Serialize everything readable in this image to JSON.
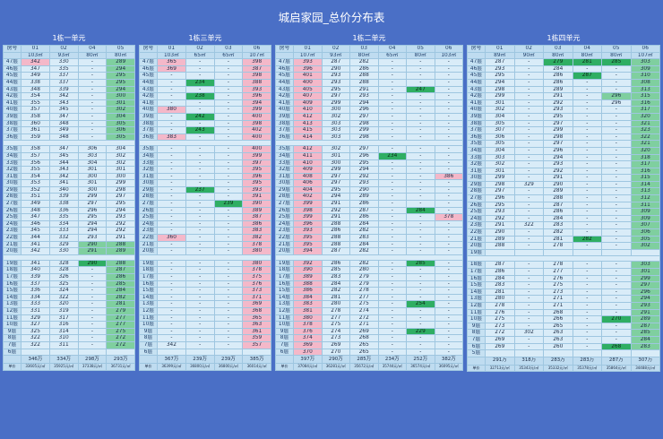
{
  "title": "城启家园_总价分布表",
  "floor_label": "房号",
  "price_label": "单价",
  "panels": [
    {
      "name": "1栋一单元",
      "units": [
        "01",
        "02",
        "04",
        "05"
      ],
      "areas": [
        "103㎡",
        "93㎡",
        "80㎡",
        "80㎡"
      ],
      "top": 47,
      "rows": [
        [
          "342p",
          "330",
          "-",
          "289g"
        ],
        [
          "347",
          "335",
          "-",
          "294g"
        ],
        [
          "349",
          "337",
          "-",
          "295g"
        ],
        [
          "338",
          "337",
          "-",
          "295g"
        ],
        [
          "348",
          "339",
          "-",
          "294g"
        ],
        [
          "354",
          "342",
          "-",
          "300g"
        ],
        [
          "355",
          "343",
          "-",
          "301g"
        ],
        [
          "357",
          "345",
          "-",
          "302g"
        ],
        [
          "358",
          "347",
          "-",
          "304g"
        ],
        [
          "360",
          "348",
          "-",
          "305g"
        ],
        [
          "361",
          "349",
          "-",
          "306g"
        ],
        [
          "359",
          "348",
          "-",
          "305g"
        ],
        null,
        [
          "358",
          "347",
          "306",
          "304"
        ],
        [
          "357",
          "345",
          "303",
          "302"
        ],
        [
          "356",
          "344",
          "304",
          "302"
        ],
        [
          "355",
          "343",
          "301",
          "301"
        ],
        [
          "354",
          "342",
          "300",
          "300"
        ],
        [
          "353",
          "341",
          "301",
          "299"
        ],
        [
          "352",
          "340",
          "300",
          "298"
        ],
        [
          "351",
          "339",
          "299",
          "297"
        ],
        [
          "349",
          "338",
          "297",
          "295"
        ],
        [
          "348",
          "336",
          "296",
          "294"
        ],
        [
          "347",
          "335",
          "295",
          "293"
        ],
        [
          "346",
          "334",
          "294",
          "292"
        ],
        [
          "345",
          "333",
          "294",
          "292"
        ],
        [
          "344",
          "332",
          "293",
          "291"
        ],
        [
          "341",
          "329",
          "290g",
          "288g"
        ],
        [
          "342",
          "330",
          "291g",
          "289g"
        ],
        null,
        [
          "341",
          "328",
          "290G",
          "288g"
        ],
        [
          "340",
          "328",
          "-",
          "287g"
        ],
        [
          "339",
          "326",
          "-",
          "286g"
        ],
        [
          "337",
          "325",
          "-",
          "285g"
        ],
        [
          "336",
          "324",
          "-",
          "284g"
        ],
        [
          "334",
          "322",
          "-",
          "282g"
        ],
        [
          "333",
          "320",
          "-",
          "281g"
        ],
        [
          "331",
          "319",
          "-",
          "279g"
        ],
        [
          "329",
          "317",
          "-",
          "277g"
        ],
        [
          "327",
          "316",
          "-",
          "277g"
        ],
        [
          "325",
          "314",
          "-",
          "275g"
        ],
        [
          "322",
          "310",
          "-",
          "272g"
        ],
        [
          "322",
          "311",
          "-",
          "272g"
        ],
        [
          "",
          "",
          "",
          ""
        ]
      ],
      "totals": [
        "346万",
        "334万",
        "298万",
        "293万"
      ],
      "unit_prices": [
        "33605元/㎡",
        "35925元/㎡",
        "37338元/㎡",
        "36731元/㎡"
      ]
    },
    {
      "name": "1栋三单元",
      "units": [
        "01",
        "02",
        "03",
        "06"
      ],
      "areas": [
        "103㎡",
        "65㎡",
        "65㎡",
        "107㎡"
      ],
      "top": 47,
      "rows": [
        [
          "365p",
          "-",
          "-",
          "398p"
        ],
        [
          "369p",
          "-",
          "-",
          "387p"
        ],
        [
          "-",
          "-",
          "-",
          "398p"
        ],
        [
          "-",
          "234G",
          "-",
          "388p"
        ],
        [
          "-",
          "-",
          "-",
          "393p"
        ],
        [
          "-",
          "238G",
          "-",
          "396p"
        ],
        [
          "-",
          "-",
          "-",
          "394p"
        ],
        [
          "380p",
          "-",
          "-",
          "399p"
        ],
        [
          "-",
          "242G",
          "-",
          "400p"
        ],
        [
          "-",
          "-",
          "-",
          "398p"
        ],
        [
          "-",
          "243G",
          "-",
          "402p"
        ],
        [
          "383p",
          "-",
          "-",
          "400p"
        ],
        null,
        [
          "-",
          "-",
          "-",
          "400p"
        ],
        [
          "-",
          "-",
          "-",
          "399p"
        ],
        [
          "-",
          "-",
          "-",
          "397p"
        ],
        [
          "-",
          "-",
          "-",
          "395p"
        ],
        [
          "-",
          "-",
          "-",
          "396p"
        ],
        [
          "-",
          "-",
          "-",
          "395p"
        ],
        [
          "-",
          "237G",
          "-",
          "393p"
        ],
        [
          "-",
          "-",
          "-",
          "391p"
        ],
        [
          "-",
          "-",
          "239G",
          "390p"
        ],
        [
          "-",
          "-",
          "-",
          "389p"
        ],
        [
          "-",
          "-",
          "-",
          "387p"
        ],
        [
          "-",
          "-",
          "-",
          "386p"
        ],
        [
          "-",
          "-",
          "-",
          "383p"
        ],
        [
          "360p",
          "-",
          "-",
          "382p"
        ],
        [
          "-",
          "-",
          "-",
          "378p"
        ],
        [
          "-",
          "-",
          "-",
          "380p"
        ],
        null,
        [
          "-",
          "-",
          "-",
          "380p"
        ],
        [
          "-",
          "-",
          "-",
          "378p"
        ],
        [
          "-",
          "-",
          "-",
          "375p"
        ],
        [
          "-",
          "-",
          "-",
          "376p"
        ],
        [
          "-",
          "-",
          "-",
          "373p"
        ],
        [
          "-",
          "-",
          "-",
          "371p"
        ],
        [
          "-",
          "-",
          "-",
          "369p"
        ],
        [
          "-",
          "-",
          "-",
          "368p"
        ],
        [
          "-",
          "-",
          "-",
          "365p"
        ],
        [
          "-",
          "-",
          "-",
          "363p"
        ],
        [
          "-",
          "-",
          "-",
          "361p"
        ],
        [
          "-",
          "-",
          "-",
          "359p"
        ],
        [
          "342",
          "-",
          "-",
          "357p"
        ],
        [
          "",
          "",
          "",
          ""
        ]
      ],
      "totals": [
        "367万",
        "239万",
        "239万",
        "385万"
      ],
      "unit_prices": [
        "36399元/㎡",
        "36800元/㎡",
        "36800元/㎡",
        "36014元/㎡"
      ]
    },
    {
      "name": "1栋二单元",
      "units": [
        "01",
        "02",
        "03",
        "04",
        "05",
        "06"
      ],
      "areas": [
        "107㎡",
        "93㎡",
        "80㎡",
        "65㎡",
        "80㎡",
        "103㎡"
      ],
      "top": 47,
      "rows": [
        [
          "393p",
          "287",
          "282",
          "-",
          "-",
          "-"
        ],
        [
          "396p",
          "290",
          "286",
          "-",
          "-",
          "-"
        ],
        [
          "401p",
          "293",
          "288",
          "-",
          "-",
          "-"
        ],
        [
          "400p",
          "293",
          "288",
          "-",
          "-",
          "-"
        ],
        [
          "405p",
          "295",
          "291",
          "-",
          "247G",
          "-"
        ],
        [
          "407p",
          "297",
          "293",
          "-",
          "-",
          "-"
        ],
        [
          "409p",
          "299",
          "294",
          "-",
          "-",
          "-"
        ],
        [
          "410p",
          "300",
          "296",
          "-",
          "-",
          "-"
        ],
        [
          "412p",
          "302",
          "297",
          "-",
          "-",
          "-"
        ],
        [
          "413p",
          "303",
          "298",
          "-",
          "-",
          "-"
        ],
        [
          "415p",
          "303",
          "299",
          "-",
          "-",
          "-"
        ],
        [
          "414p",
          "303",
          "298",
          "-",
          "-",
          "-"
        ],
        null,
        [
          "412p",
          "302",
          "297",
          "-",
          "-",
          "-"
        ],
        [
          "411p",
          "301",
          "296",
          "234G",
          "-",
          "-"
        ],
        [
          "410p",
          "300",
          "295",
          "-",
          "-",
          "-"
        ],
        [
          "409p",
          "299",
          "294",
          "-",
          "-",
          "-"
        ],
        [
          "408p",
          "297",
          "292",
          "-",
          "-",
          "386p"
        ],
        [
          "406p",
          "297",
          "293",
          "-",
          "-",
          "-"
        ],
        [
          "404p",
          "295",
          "290",
          "-",
          "-",
          "-"
        ],
        [
          "402p",
          "294",
          "289",
          "-",
          "-",
          "-"
        ],
        [
          "399p",
          "291",
          "286",
          "-",
          "-",
          "-"
        ],
        [
          "398p",
          "292",
          "287",
          "-",
          "284G",
          "-"
        ],
        [
          "399p",
          "291",
          "286",
          "-",
          "-",
          "378p"
        ],
        [
          "396p",
          "288",
          "284",
          "-",
          "-",
          "-"
        ],
        [
          "393p",
          "286",
          "282",
          "-",
          "-",
          "-"
        ],
        [
          "395p",
          "288",
          "283",
          "-",
          "-",
          "-"
        ],
        [
          "395p",
          "288",
          "284",
          "-",
          "-",
          "-"
        ],
        [
          "394p",
          "287",
          "282",
          "-",
          "-",
          "-"
        ],
        null,
        [
          "392p",
          "286",
          "282",
          "-",
          "285G",
          "-"
        ],
        [
          "390p",
          "285",
          "280",
          "-",
          "-",
          "-"
        ],
        [
          "389p",
          "283",
          "279",
          "-",
          "-",
          "-"
        ],
        [
          "388p",
          "284",
          "279",
          "-",
          "-",
          "-"
        ],
        [
          "386p",
          "282",
          "278",
          "-",
          "-",
          "-"
        ],
        [
          "384p",
          "281",
          "277",
          "-",
          "-",
          "-"
        ],
        [
          "383p",
          "280",
          "275",
          "-",
          "254G",
          "-"
        ],
        [
          "381p",
          "278",
          "274",
          "-",
          "-",
          "-"
        ],
        [
          "380p",
          "277",
          "272",
          "-",
          "-",
          "-"
        ],
        [
          "378p",
          "275",
          "271",
          "-",
          "-",
          "-"
        ],
        [
          "376p",
          "274",
          "269",
          "-",
          "229G",
          "-"
        ],
        [
          "374p",
          "273",
          "268",
          "-",
          "-",
          "-"
        ],
        [
          "369p",
          "269",
          "265",
          "-",
          "-",
          "-"
        ],
        [
          "370p",
          "270",
          "265",
          "-",
          "-",
          "-"
        ]
      ],
      "totals": [
        "397万",
        "290万",
        "285万",
        "234万",
        "252万",
        "382万"
      ],
      "unit_prices": [
        "37084元/㎡",
        "36281元/㎡",
        "35672元/㎡",
        "35744元/㎡",
        "36574元/㎡",
        "36095元/㎡"
      ]
    },
    {
      "name": "1栋四单元",
      "units": [
        "01",
        "02",
        "03",
        "04",
        "05",
        "06"
      ],
      "areas": [
        "89㎡",
        "90㎡",
        "80㎡",
        "80㎡",
        "80㎡",
        "107㎡"
      ],
      "top": 47,
      "rows": [
        [
          "287",
          "-",
          "279G",
          "281G",
          "285G",
          "303g"
        ],
        [
          "293",
          "-",
          "284",
          "-",
          "-",
          "309g"
        ],
        [
          "295",
          "-",
          "286",
          "287G",
          "-",
          "310g"
        ],
        [
          "294",
          "-",
          "286",
          "-",
          "-",
          "308g"
        ],
        [
          "298",
          "-",
          "289",
          "-",
          "-",
          "313g"
        ],
        [
          "299",
          "-",
          "291",
          "-",
          "296g",
          "315g"
        ],
        [
          "301",
          "-",
          "292",
          "-",
          "296",
          "316g"
        ],
        [
          "302",
          "-",
          "293",
          "-",
          "-",
          "317g"
        ],
        [
          "304",
          "-",
          "295",
          "-",
          "-",
          "320g"
        ],
        [
          "305",
          "-",
          "297",
          "-",
          "-",
          "321g"
        ],
        [
          "307",
          "-",
          "299",
          "-",
          "-",
          "323g"
        ],
        [
          "306",
          "-",
          "298",
          "-",
          "-",
          "322g"
        ],
        [
          "305",
          "-",
          "297",
          "-",
          "-",
          "321g"
        ],
        [
          "304",
          "-",
          "296",
          "-",
          "-",
          "320g"
        ],
        [
          "303",
          "-",
          "294",
          "-",
          "-",
          "318g"
        ],
        [
          "302",
          "-",
          "293",
          "-",
          "-",
          "317g"
        ],
        [
          "301",
          "-",
          "292",
          "-",
          "-",
          "316g"
        ],
        [
          "299",
          "-",
          "291",
          "-",
          "-",
          "315g"
        ],
        [
          "298",
          "329",
          "290",
          "-",
          "-",
          "314g"
        ],
        [
          "297",
          "-",
          "289",
          "-",
          "-",
          "313g"
        ],
        [
          "296",
          "-",
          "288",
          "-",
          "-",
          "312g"
        ],
        [
          "295",
          "-",
          "287",
          "-",
          "-",
          "311g"
        ],
        [
          "293",
          "-",
          "286",
          "-",
          "-",
          "309g"
        ],
        [
          "292",
          "-",
          "284",
          "-",
          "-",
          "309g"
        ],
        [
          "291",
          "322",
          "283",
          "-",
          "-",
          "307g"
        ],
        [
          "290",
          "-",
          "282",
          "-",
          "-",
          "306g"
        ],
        [
          "289",
          "-",
          "281",
          "282G",
          "-",
          "305g"
        ],
        [
          "288",
          "-",
          "278",
          "-",
          "-",
          "302g"
        ],
        [
          "",
          "",
          "",
          "",
          "",
          ""
        ],
        null,
        [
          "287",
          "-",
          "278",
          "-",
          "-",
          "303g"
        ],
        [
          "286",
          "-",
          "277",
          "-",
          "-",
          "301g"
        ],
        [
          "284",
          "-",
          "276",
          "-",
          "-",
          "299g"
        ],
        [
          "283",
          "-",
          "275",
          "-",
          "-",
          "297g"
        ],
        [
          "281",
          "-",
          "273",
          "-",
          "-",
          "296g"
        ],
        [
          "280",
          "-",
          "271",
          "-",
          "-",
          "294g"
        ],
        [
          "278",
          "-",
          "271",
          "-",
          "-",
          "293g"
        ],
        [
          "276",
          "-",
          "268",
          "-",
          "-",
          "291g"
        ],
        [
          "275",
          "-",
          "266",
          "-",
          "270G",
          "289g"
        ],
        [
          "273",
          "-",
          "265",
          "-",
          "-",
          "287g"
        ],
        [
          "272",
          "302",
          "263",
          "-",
          "-",
          "285g"
        ],
        [
          "269",
          "-",
          "263",
          "-",
          "-",
          "284g"
        ],
        [
          "269",
          "-",
          "260",
          "-",
          "268G",
          "283g"
        ],
        [
          "",
          "",
          "",
          "",
          "",
          ""
        ]
      ],
      "totals": [
        "291万",
        "318万",
        "283万",
        "283万",
        "287万",
        "307万"
      ],
      "unit_prices": [
        "32713元/㎡",
        "35343元/㎡",
        "35332元/㎡",
        "35378元/㎡",
        "35864元/㎡",
        "34488元/㎡"
      ]
    }
  ]
}
